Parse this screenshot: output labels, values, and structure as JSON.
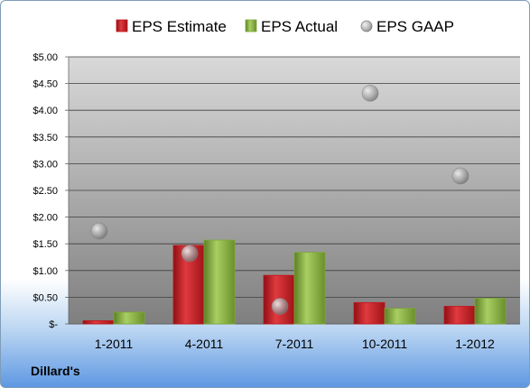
{
  "chart_data": {
    "type": "bar",
    "categories": [
      "1-2011",
      "4-2011",
      "7-2011",
      "10-2011",
      "1-2012"
    ],
    "series": [
      {
        "name": "EPS Estimate",
        "kind": "bar",
        "color": "#c0161c",
        "values": [
          0.06,
          1.47,
          0.91,
          0.4,
          0.33
        ]
      },
      {
        "name": "EPS Actual",
        "kind": "bar",
        "color": "#7ea83a",
        "values": [
          0.22,
          1.57,
          1.34,
          0.29,
          0.48
        ]
      },
      {
        "name": "EPS GAAP",
        "kind": "bubble",
        "color": "#a6a6a6",
        "values": [
          1.74,
          1.32,
          0.33,
          4.32,
          2.77
        ]
      }
    ],
    "y_ticks": [
      "$-",
      "$0.50",
      "$1.00",
      "$1.50",
      "$2.00",
      "$2.50",
      "$3.00",
      "$3.50",
      "$4.00",
      "$4.50",
      "$5.00"
    ],
    "ylim": [
      0,
      5
    ],
    "ystep": 0.5,
    "grid": true,
    "legend_position": "top",
    "plot_background": [
      "#d9d9d9",
      "#7f7f7f"
    ]
  },
  "footer": {
    "company": "Dillard's"
  }
}
